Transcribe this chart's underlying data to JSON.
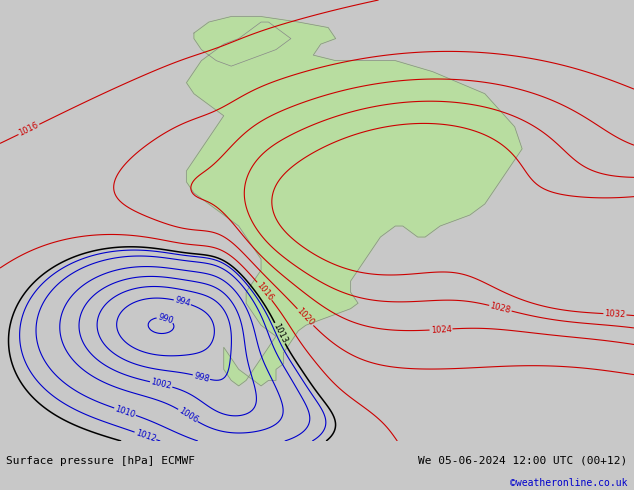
{
  "title_left": "Surface pressure [hPa] ECMWF",
  "title_right": "We 05-06-2024 12:00 UTC (00+12)",
  "copyright": "©weatheronline.co.uk",
  "bg_color": "#c8c8c8",
  "map_bg_color": "#d2d2d2",
  "land_color": "#b8dda0",
  "coast_color": "#888888",
  "fig_width": 6.34,
  "fig_height": 4.9,
  "dpi": 100,
  "text_color_left": "#000000",
  "text_color_right": "#000000",
  "text_color_copy": "#0000cc",
  "footer_bg": "#b8b8b8",
  "isobar_low_color": "#0000cc",
  "isobar_high_color": "#cc0000",
  "isobar_black_color": "#000000",
  "isobar_label_fontsize": 6,
  "footer_fontsize": 8.0,
  "xlim": [
    -105,
    -20
  ],
  "ylim": [
    -65,
    15
  ],
  "low1_lon": -83,
  "low1_lat": -44,
  "low1_amp": -32,
  "low1_slon": 12,
  "low1_slat": 10,
  "high1_lon": -28,
  "high1_lat": -33,
  "high1_amp": 20,
  "high1_slon": 8,
  "high1_slat": 7,
  "high2_lon": -15,
  "high2_lat": -35,
  "high2_amp": 22,
  "high2_slon": 9,
  "high2_slat": 8,
  "low2_lon": -60,
  "low2_lat": -58,
  "low2_amp": -8,
  "low2_slon": 7,
  "low2_slat": 5,
  "base_pressure": 1013.0
}
